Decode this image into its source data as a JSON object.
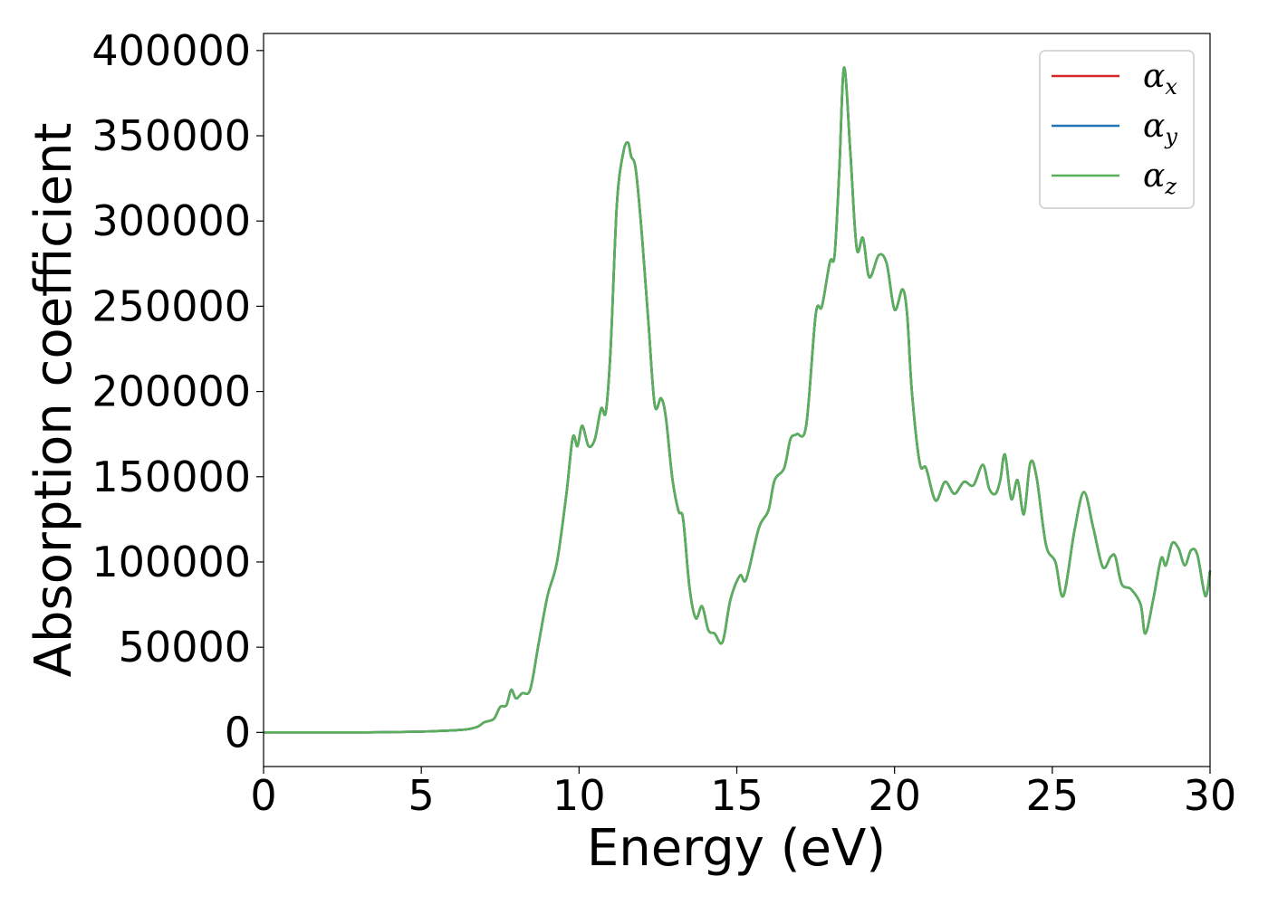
{
  "chart_data": {
    "type": "line",
    "xlabel": "Energy (eV)",
    "ylabel": "Absorption coefficient",
    "xlim": [
      0,
      30
    ],
    "ylim": [
      -20000,
      410000
    ],
    "xticks": [
      0,
      5,
      10,
      15,
      20,
      25,
      30
    ],
    "xtick_labels": [
      "0",
      "5",
      "10",
      "15",
      "20",
      "25",
      "30"
    ],
    "yticks": [
      0,
      50000,
      100000,
      150000,
      200000,
      250000,
      300000,
      350000,
      400000
    ],
    "ytick_labels": [
      "0",
      "50000",
      "100000",
      "150000",
      "200000",
      "250000",
      "300000",
      "350000",
      "400000"
    ],
    "grid": false,
    "legend_position": "top-right",
    "x": [
      0,
      1,
      2,
      3,
      4,
      5,
      5.5,
      6,
      6.5,
      6.8,
      7.0,
      7.3,
      7.5,
      7.7,
      7.85,
      8.0,
      8.2,
      8.45,
      8.7,
      9.0,
      9.3,
      9.6,
      9.8,
      9.95,
      10.1,
      10.3,
      10.5,
      10.7,
      10.85,
      11.0,
      11.2,
      11.4,
      11.55,
      11.65,
      11.8,
      12.0,
      12.2,
      12.4,
      12.6,
      12.75,
      12.95,
      13.15,
      13.3,
      13.5,
      13.7,
      13.9,
      14.1,
      14.3,
      14.55,
      14.8,
      15.1,
      15.3,
      15.7,
      16.0,
      16.2,
      16.5,
      16.7,
      16.9,
      17.2,
      17.5,
      17.7,
      17.95,
      18.1,
      18.25,
      18.4,
      18.6,
      18.8,
      19.0,
      19.2,
      19.5,
      19.75,
      20.0,
      20.25,
      20.4,
      20.55,
      20.8,
      21.0,
      21.3,
      21.6,
      21.9,
      22.2,
      22.5,
      22.8,
      23.0,
      23.2,
      23.35,
      23.5,
      23.7,
      23.9,
      24.1,
      24.3,
      24.5,
      24.8,
      25.1,
      25.35,
      25.7,
      26.0,
      26.3,
      26.6,
      26.85,
      27.0,
      27.2,
      27.5,
      27.8,
      27.95,
      28.2,
      28.45,
      28.6,
      28.8,
      29.0,
      29.2,
      29.4,
      29.6,
      29.85,
      30.0
    ],
    "series": [
      {
        "name": "α_x",
        "color": "#d62728",
        "values": [
          0,
          0,
          0,
          0,
          200,
          500,
          800,
          1200,
          2000,
          3500,
          6000,
          8000,
          15000,
          16000,
          25000,
          20000,
          23000,
          25000,
          50000,
          80000,
          100000,
          140000,
          173000,
          168000,
          180000,
          168000,
          172000,
          190000,
          188000,
          225000,
          310000,
          340000,
          346000,
          338000,
          330000,
          290000,
          240000,
          192000,
          196000,
          185000,
          150000,
          130000,
          125000,
          85000,
          67000,
          74000,
          60000,
          58000,
          53000,
          78000,
          92000,
          90000,
          120000,
          130000,
          148000,
          155000,
          172000,
          175000,
          180000,
          245000,
          250000,
          276000,
          280000,
          330000,
          390000,
          340000,
          284000,
          290000,
          267000,
          280000,
          275000,
          248000,
          260000,
          245000,
          200000,
          158000,
          155000,
          136000,
          147000,
          140000,
          147000,
          145000,
          157000,
          143000,
          140000,
          148000,
          163000,
          137000,
          148000,
          128000,
          158000,
          150000,
          110000,
          100000,
          80000,
          118000,
          141000,
          120000,
          97000,
          103000,
          103000,
          87000,
          84000,
          75000,
          58000,
          78000,
          102000,
          98000,
          111000,
          108000,
          98000,
          107000,
          104000,
          80000,
          95000
        ]
      },
      {
        "name": "α_y",
        "color": "#1f77b4",
        "values": [
          0,
          0,
          0,
          0,
          200,
          500,
          800,
          1200,
          2000,
          3500,
          6000,
          8000,
          15000,
          16000,
          25000,
          20000,
          23000,
          25000,
          50000,
          80000,
          100000,
          140000,
          173000,
          168000,
          180000,
          168000,
          172000,
          190000,
          188000,
          225000,
          310000,
          340000,
          346000,
          338000,
          330000,
          290000,
          240000,
          192000,
          196000,
          185000,
          150000,
          130000,
          125000,
          85000,
          67000,
          74000,
          60000,
          58000,
          53000,
          78000,
          92000,
          90000,
          120000,
          130000,
          148000,
          155000,
          172000,
          175000,
          180000,
          245000,
          250000,
          276000,
          280000,
          330000,
          390000,
          340000,
          284000,
          290000,
          267000,
          280000,
          275000,
          248000,
          260000,
          245000,
          200000,
          158000,
          155000,
          136000,
          147000,
          140000,
          147000,
          145000,
          157000,
          143000,
          140000,
          148000,
          163000,
          137000,
          148000,
          128000,
          158000,
          150000,
          110000,
          100000,
          80000,
          118000,
          141000,
          120000,
          97000,
          103000,
          103000,
          87000,
          84000,
          75000,
          58000,
          78000,
          102000,
          98000,
          111000,
          108000,
          98000,
          107000,
          104000,
          80000,
          95000
        ]
      },
      {
        "name": "α_z",
        "color": "#5aaf5a",
        "values": [
          0,
          0,
          0,
          0,
          200,
          500,
          800,
          1200,
          2000,
          3500,
          6000,
          8000,
          15000,
          16000,
          25000,
          20000,
          23000,
          25000,
          50000,
          80000,
          100000,
          140000,
          173000,
          168000,
          180000,
          168000,
          172000,
          190000,
          188000,
          225000,
          310000,
          340000,
          346000,
          338000,
          330000,
          290000,
          240000,
          192000,
          196000,
          185000,
          150000,
          130000,
          125000,
          85000,
          67000,
          74000,
          60000,
          58000,
          53000,
          78000,
          92000,
          90000,
          120000,
          130000,
          148000,
          155000,
          172000,
          175000,
          180000,
          245000,
          250000,
          276000,
          280000,
          330000,
          390000,
          340000,
          284000,
          290000,
          267000,
          280000,
          275000,
          248000,
          260000,
          245000,
          200000,
          158000,
          155000,
          136000,
          147000,
          140000,
          147000,
          145000,
          157000,
          143000,
          140000,
          148000,
          163000,
          137000,
          148000,
          128000,
          158000,
          150000,
          110000,
          100000,
          80000,
          118000,
          141000,
          120000,
          97000,
          103000,
          103000,
          87000,
          84000,
          75000,
          58000,
          78000,
          102000,
          98000,
          111000,
          108000,
          98000,
          107000,
          104000,
          80000,
          95000
        ]
      }
    ],
    "legend": [
      {
        "symbol": "α",
        "subscript": "x",
        "color": "#d62728"
      },
      {
        "symbol": "α",
        "subscript": "y",
        "color": "#1f77b4"
      },
      {
        "symbol": "α",
        "subscript": "z",
        "color": "#5aaf5a"
      }
    ]
  }
}
